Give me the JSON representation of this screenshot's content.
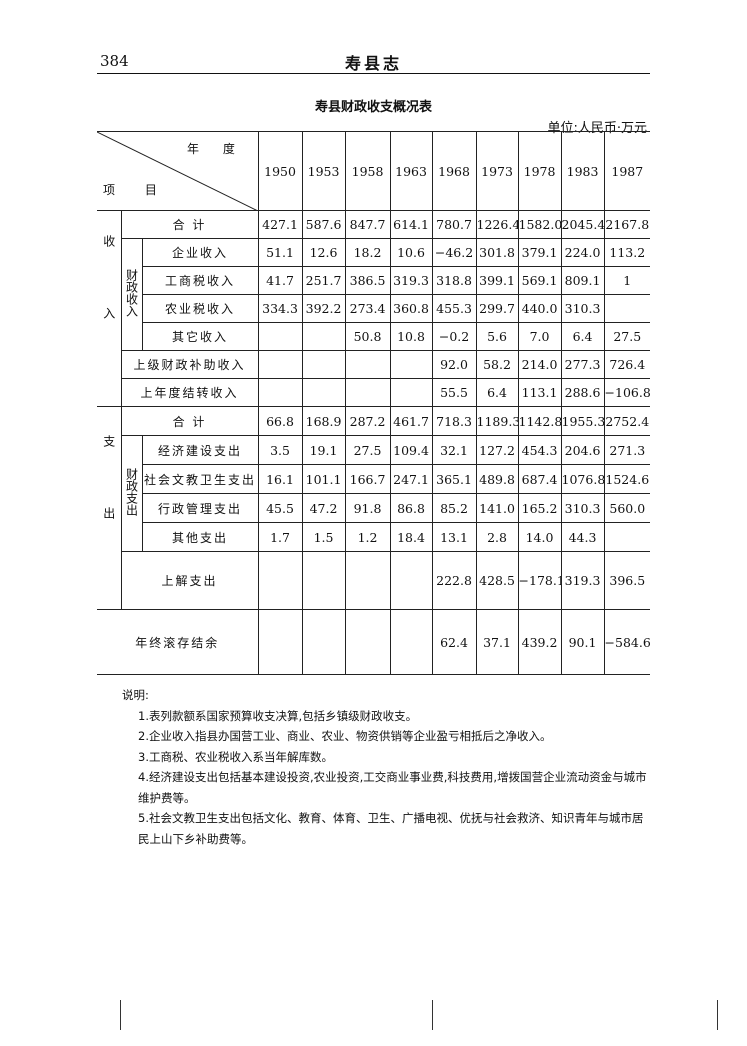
{
  "page": {
    "number": "384",
    "running_head": "寿县志"
  },
  "table": {
    "title": "寿县财政收支概况表",
    "unit": "单位:人民币·万元",
    "header": {
      "year_label": "年 度",
      "item_label": "项 目",
      "years": [
        "1950",
        "1953",
        "1958",
        "1963",
        "1968",
        "1973",
        "1978",
        "1983",
        "1987"
      ]
    },
    "income": {
      "group_label": "收入",
      "sub_label": "财政收入",
      "total": {
        "label": "合 计",
        "values": [
          "427.1",
          "587.6",
          "847.7",
          "614.1",
          "780.7",
          "1226.4",
          "1582.0",
          "2045.4",
          "2167.8"
        ]
      },
      "fiscal_items": [
        {
          "label": "企业收入",
          "values": [
            "51.1",
            "12.6",
            "18.2",
            "10.6",
            "−46.2",
            "301.8",
            "379.1",
            "224.0",
            "113.2"
          ]
        },
        {
          "label": "工商税收入",
          "values": [
            "41.7",
            "251.7",
            "386.5",
            "319.3",
            "318.8",
            "399.1",
            "569.1",
            "809.1",
            "1"
          ]
        },
        {
          "label": "农业税收入",
          "values": [
            "334.3",
            "392.2",
            "273.4",
            "360.8",
            "455.3",
            "299.7",
            "440.0",
            "310.3",
            ""
          ]
        },
        {
          "label": "其它收入",
          "values": [
            "",
            "",
            "50.8",
            "10.8",
            "−0.2",
            "5.6",
            "7.0",
            "6.4",
            "27.5"
          ]
        }
      ],
      "other_items": [
        {
          "label": "上级财政补助收入",
          "values": [
            "",
            "",
            "",
            "",
            "92.0",
            "58.2",
            "214.0",
            "277.3",
            "726.4"
          ]
        },
        {
          "label": "上年度结转收入",
          "values": [
            "",
            "",
            "",
            "",
            "55.5",
            "6.4",
            "113.1",
            "288.6",
            "−106.8"
          ]
        }
      ]
    },
    "expense": {
      "group_label": "支出",
      "sub_label": "财政支出",
      "total": {
        "label": "合 计",
        "values": [
          "66.8",
          "168.9",
          "287.2",
          "461.7",
          "718.3",
          "1189.3",
          "1142.8",
          "1955.3",
          "2752.4"
        ]
      },
      "fiscal_items": [
        {
          "label": "经济建设支出",
          "values": [
            "3.5",
            "19.1",
            "27.5",
            "109.4",
            "32.1",
            "127.2",
            "454.3",
            "204.6",
            "271.3"
          ]
        },
        {
          "label": "社会文教卫生支出",
          "values": [
            "16.1",
            "101.1",
            "166.7",
            "247.1",
            "365.1",
            "489.8",
            "687.4",
            "1076.8",
            "1524.6"
          ]
        },
        {
          "label": "行政管理支出",
          "values": [
            "45.5",
            "47.2",
            "91.8",
            "86.8",
            "85.2",
            "141.0",
            "165.2",
            "310.3",
            "560.0"
          ]
        },
        {
          "label": "其他支出",
          "values": [
            "1.7",
            "1.5",
            "1.2",
            "18.4",
            "13.1",
            "2.8",
            "14.0",
            "44.3",
            ""
          ]
        }
      ],
      "other_items": [
        {
          "label": "上解支出",
          "values": [
            "",
            "",
            "",
            "",
            "222.8",
            "428.5",
            "−178.1",
            "319.3",
            "396.5"
          ]
        }
      ]
    },
    "balance": {
      "label": "年终滚存结余",
      "values": [
        "",
        "",
        "",
        "",
        "62.4",
        "37.1",
        "439.2",
        "90.1",
        "−584.6"
      ]
    }
  },
  "notes": {
    "heading": "说明:",
    "items": [
      "1.表列款额系国家预算收支决算,包括乡镇级财政收支。",
      "2.企业收入指县办国营工业、商业、农业、物资供销等企业盈亏相抵后之净收入。",
      "3.工商税、农业税收入系当年解库数。",
      "4.经济建设支出包括基本建设投资,农业投资,工交商业事业费,科技费用,增拨国营企业流动资金与城市维护费等。",
      "5.社会文教卫生支出包括文化、教育、体育、卫生、广播电视、优抚与社会救济、知识青年与城市居民上山下乡补助费等。"
    ]
  }
}
